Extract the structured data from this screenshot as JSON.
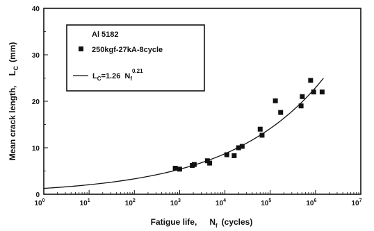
{
  "chart_data": {
    "type": "scatter",
    "x_scale": "log",
    "x_tick_labels": [
      {
        "base": "10",
        "exp": "0"
      },
      {
        "base": "10",
        "exp": "1"
      },
      {
        "base": "10",
        "exp": "2"
      },
      {
        "base": "10",
        "exp": "3"
      },
      {
        "base": "10",
        "exp": "4"
      },
      {
        "base": "10",
        "exp": "5"
      },
      {
        "base": "10",
        "exp": "6"
      },
      {
        "base": "10",
        "exp": "7"
      }
    ],
    "xlim": [
      1,
      10000000
    ],
    "ylim": [
      0,
      40
    ],
    "y_ticks": [
      0,
      10,
      20,
      30,
      40
    ],
    "y_tick_labels": [
      "0",
      "10",
      "20",
      "30",
      "40"
    ],
    "xlabel": {
      "prefix": "Fatigue life,",
      "symbol": "N",
      "subscript": "f",
      "suffix": "(cycles)"
    },
    "ylabel": {
      "text": "Mean crack length,",
      "symbol": "L",
      "subscript": "C",
      "suffix": "(mm)"
    },
    "legend": {
      "title": "Al 5182",
      "marker_label": "250kgf-27kA-8cycle",
      "line_label": {
        "lhs": "L",
        "lhs_sub": "C",
        "mid": "=1.26",
        "rhs": "N",
        "rhs_sub": "f",
        "power": "0.21"
      },
      "placement": "top-left"
    },
    "series": [
      {
        "kind": "points",
        "marker": "square",
        "color": "#111111",
        "x": [
          800,
          1000,
          1900,
          2100,
          4100,
          4600,
          11000,
          16000,
          20000,
          24000,
          60000,
          66000,
          130000,
          170000,
          480000,
          510000,
          780000,
          910000,
          1400000
        ],
        "y": [
          5.6,
          5.4,
          6.2,
          6.4,
          7.2,
          6.7,
          8.5,
          8.3,
          10.0,
          10.3,
          14.0,
          12.7,
          20.1,
          17.6,
          19.0,
          21.0,
          24.5,
          22.0,
          22.0
        ]
      },
      {
        "kind": "fit",
        "color": "#111111",
        "coefficient": 1.26,
        "exponent": 0.21,
        "x_range": [
          1,
          1500000
        ]
      }
    ],
    "grid": false
  }
}
